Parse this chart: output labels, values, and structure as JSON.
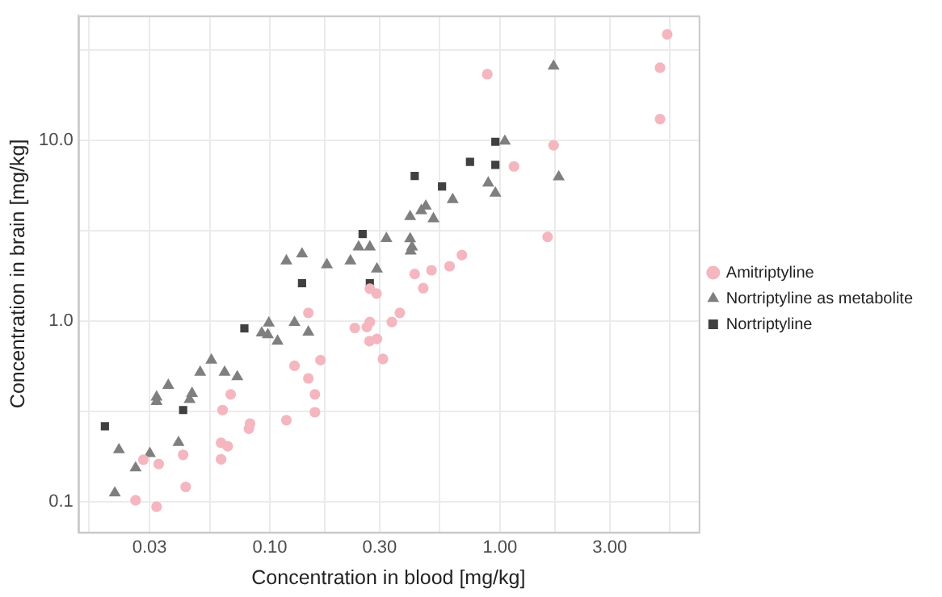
{
  "chart_data": {
    "type": "scatter",
    "xlabel": "Concentration in blood [mg/kg]",
    "ylabel": "Concentration in brain [mg/kg]",
    "log": "xy",
    "grid": true,
    "legend": "right",
    "xlim": [
      0.0147,
      7.3
    ],
    "ylim": [
      0.068,
      49
    ],
    "xticks": [
      {
        "value": 0.0164,
        "label": null
      },
      {
        "value": 0.03,
        "label": "0.03"
      },
      {
        "value": 0.0548,
        "label": null
      },
      {
        "value": 0.1,
        "label": "0.10"
      },
      {
        "value": 0.173,
        "label": null
      },
      {
        "value": 0.3,
        "label": "0.30"
      },
      {
        "value": 0.548,
        "label": null
      },
      {
        "value": 1,
        "label": "1.00"
      },
      {
        "value": 1.73,
        "label": null
      },
      {
        "value": 3,
        "label": "3.00"
      },
      {
        "value": 5.48,
        "label": null
      }
    ],
    "yticks": [
      {
        "value": 0.1,
        "label": "0.1"
      },
      {
        "value": 0.316,
        "label": null
      },
      {
        "value": 1,
        "label": "1.0"
      },
      {
        "value": 3.16,
        "label": null
      },
      {
        "value": 10,
        "label": "10.0"
      },
      {
        "value": 31.6,
        "label": null
      }
    ],
    "series": [
      {
        "name": "Amitriptyline",
        "color": "#f4b6bf",
        "marker": "circle",
        "x": [
          0.0261,
          0.0282,
          0.0322,
          0.0329,
          0.042,
          0.0431,
          0.0614,
          0.0656,
          0.0614,
          0.0623,
          0.0676,
          0.0811,
          0.082,
          0.118,
          0.128,
          0.147,
          0.147,
          0.157,
          0.157,
          0.166,
          0.234,
          0.264,
          0.272,
          0.271,
          0.292,
          0.272,
          0.291,
          0.31,
          0.339,
          0.367,
          0.426,
          0.464,
          0.504,
          0.604,
          0.683,
          0.881,
          1.15,
          1.61,
          1.71,
          4.96,
          4.96,
          5.33
        ],
        "values": [
          0.102,
          0.171,
          0.094,
          0.162,
          0.182,
          0.121,
          0.212,
          0.203,
          0.172,
          0.322,
          0.393,
          0.254,
          0.271,
          0.283,
          0.566,
          0.482,
          1.11,
          0.393,
          0.313,
          0.608,
          0.916,
          0.927,
          0.989,
          0.774,
          0.796,
          1.51,
          1.42,
          0.617,
          0.989,
          1.11,
          1.82,
          1.52,
          1.91,
          2.01,
          2.32,
          23.2,
          7.17,
          2.92,
          9.38,
          13.1,
          25.2,
          38.5
        ]
      },
      {
        "name": "Nortriptyline as metabolite",
        "color": "#7f7f7f",
        "marker": "triangle",
        "x": [
          0.0212,
          0.0221,
          0.0261,
          0.0301,
          0.0401,
          0.0322,
          0.0322,
          0.0362,
          0.0448,
          0.0459,
          0.0498,
          0.0557,
          0.0636,
          0.0722,
          0.0922,
          0.098,
          0.099,
          0.108,
          0.128,
          0.147,
          0.118,
          0.138,
          0.177,
          0.224,
          0.243,
          0.272,
          0.292,
          0.321,
          0.407,
          0.407,
          0.415,
          0.409,
          0.455,
          0.476,
          0.514,
          0.623,
          0.889,
          0.955,
          1.05,
          1.71,
          1.8
        ],
        "values": [
          0.112,
          0.194,
          0.154,
          0.185,
          0.213,
          0.38,
          0.359,
          0.441,
          0.368,
          0.398,
          0.521,
          0.608,
          0.521,
          0.492,
          0.859,
          0.84,
          0.975,
          0.774,
          0.982,
          0.869,
          2.15,
          2.35,
          2.05,
          2.15,
          2.57,
          2.57,
          1.94,
          2.86,
          2.85,
          3.78,
          2.57,
          2.44,
          4.08,
          4.32,
          3.68,
          4.7,
          5.8,
          5.1,
          9.88,
          25.7,
          6.27
        ]
      },
      {
        "name": "Nortriptyline",
        "color": "#404040",
        "marker": "square",
        "x": [
          0.0192,
          0.042,
          0.0775,
          0.138,
          0.253,
          0.272,
          0.426,
          0.56,
          0.741,
          0.955,
          0.955
        ],
        "values": [
          0.262,
          0.322,
          0.911,
          1.62,
          3.03,
          1.62,
          6.35,
          5.55,
          7.6,
          9.81,
          7.31
        ]
      }
    ]
  }
}
